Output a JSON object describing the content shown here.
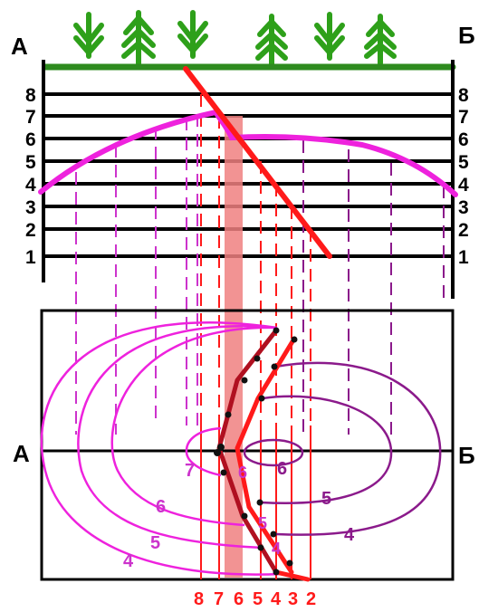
{
  "section": {
    "left_label": "А",
    "right_label": "Б"
  },
  "levels": [
    "1",
    "2",
    "3",
    "4",
    "5",
    "6",
    "7",
    "8"
  ],
  "plan": {
    "left_label": "А",
    "right_label": "Б"
  },
  "contours_left": [
    "7",
    "6",
    "5",
    "4"
  ],
  "contours_right": [
    "6",
    "5",
    "4"
  ],
  "contours_mid": [
    "6",
    "5",
    "4"
  ],
  "bottom_scale": [
    "8",
    "7",
    "6",
    "5",
    "4",
    "3",
    "2"
  ],
  "colors": {
    "ground": "#2e8b1f",
    "tree": "#2ea01a",
    "profile": "#ee22dd",
    "purple": "#8b1a8b",
    "fault": "#ff1a1a",
    "fault_dark": "#b01020",
    "strip": "#f08080"
  }
}
